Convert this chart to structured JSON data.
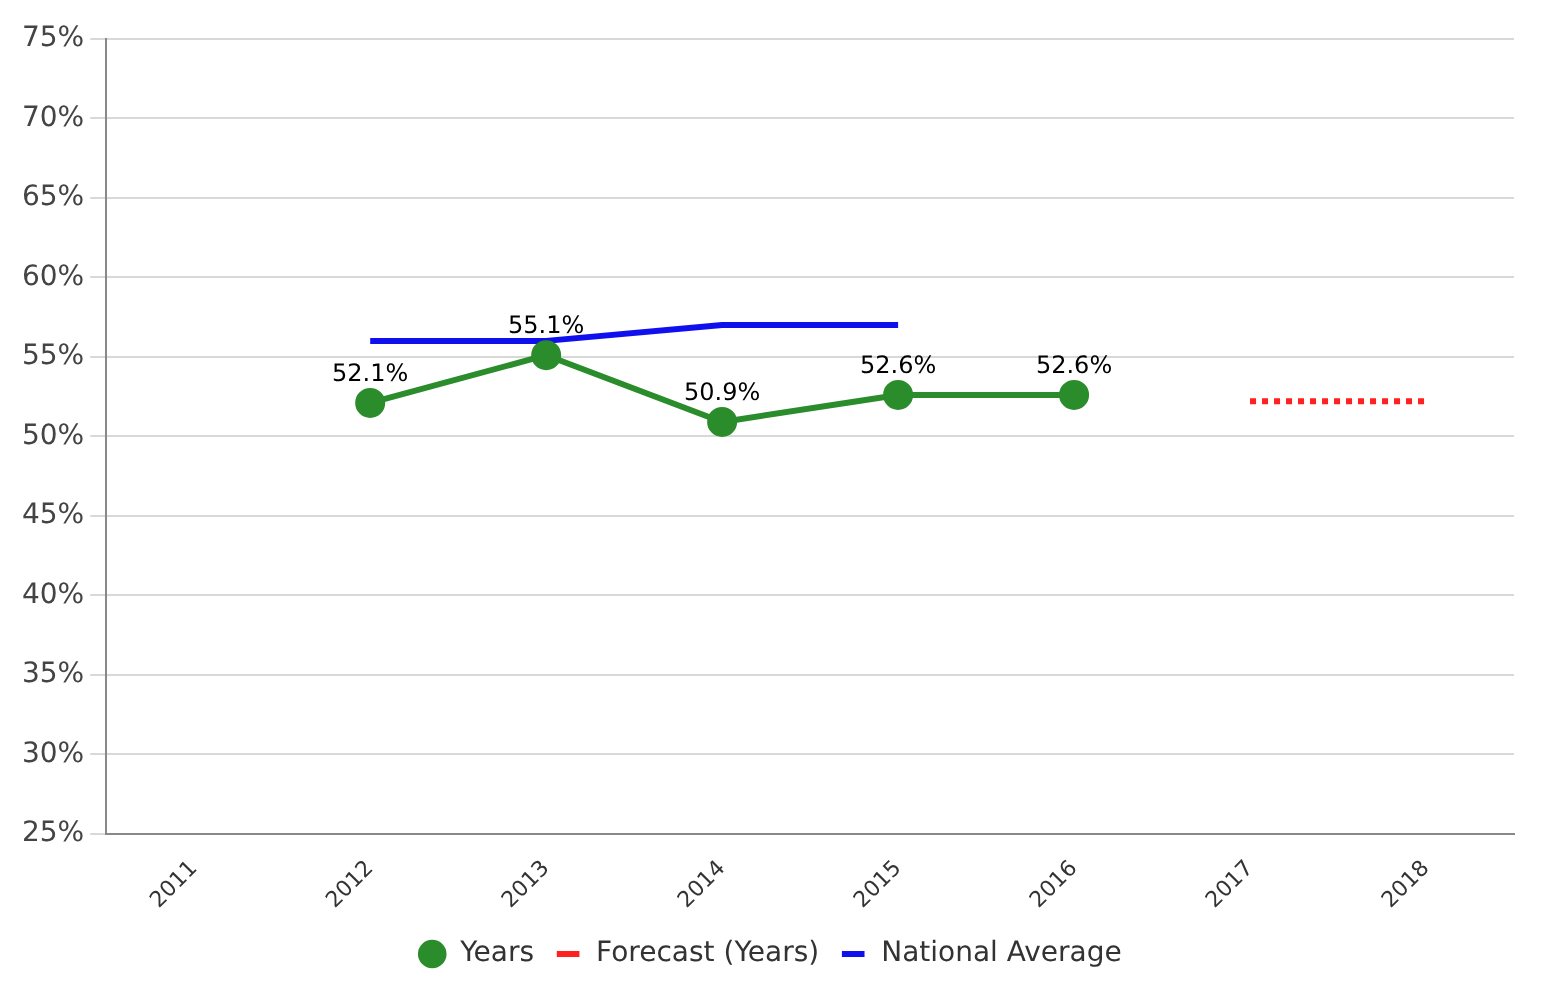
{
  "chart_data": {
    "type": "line",
    "categories": [
      "2011",
      "2012",
      "2013",
      "2014",
      "2015",
      "2016",
      "2017",
      "2018"
    ],
    "series": [
      {
        "name": "Years",
        "color": "#2a8c2a",
        "values": [
          null,
          52.1,
          55.1,
          50.9,
          52.6,
          52.6,
          null,
          null
        ],
        "value_labels": [
          null,
          "52.1%",
          "55.1%",
          "50.9%",
          "52.6%",
          "52.6%",
          null,
          null
        ],
        "marker": "circle",
        "line_style": "solid"
      },
      {
        "name": "Forecast (Years)",
        "color": "#ff2020",
        "values": [
          null,
          null,
          null,
          null,
          null,
          null,
          52.2,
          52.2
        ],
        "marker": "none",
        "line_style": "dotted"
      },
      {
        "name": "National Average",
        "color": "#1010ee",
        "values": [
          null,
          56,
          56,
          57,
          57,
          null,
          null,
          null
        ],
        "marker": "none",
        "line_style": "solid"
      }
    ],
    "ylim": [
      25,
      75
    ],
    "yticks": [
      {
        "value": 25,
        "label": "25%"
      },
      {
        "value": 30,
        "label": "30%"
      },
      {
        "value": 35,
        "label": "35%"
      },
      {
        "value": 40,
        "label": "40%"
      },
      {
        "value": 45,
        "label": "45%"
      },
      {
        "value": 50,
        "label": "50%"
      },
      {
        "value": 55,
        "label": "55%"
      },
      {
        "value": 60,
        "label": "60%"
      },
      {
        "value": 65,
        "label": "65%"
      },
      {
        "value": 70,
        "label": "70%"
      },
      {
        "value": 75,
        "label": "75%"
      }
    ],
    "grid": "y",
    "legend": "bottom"
  }
}
